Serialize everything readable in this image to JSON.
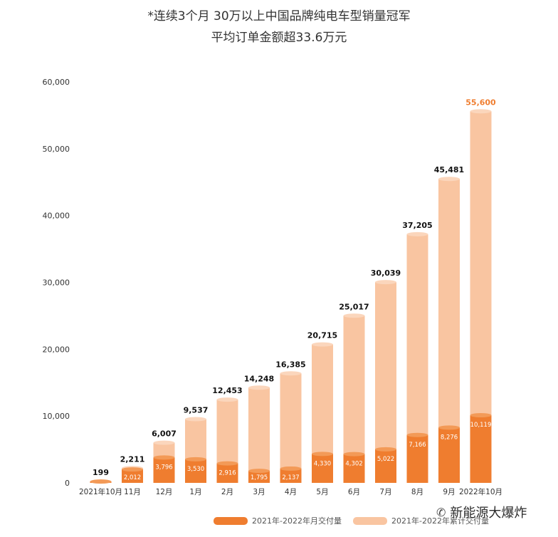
{
  "header": {
    "line1": "*连续3个月 30万以上中国品牌纯电车型销量冠军",
    "line2": "平均订单金额超33.6万元"
  },
  "legend": {
    "monthly": "2021年-2022年月交付量",
    "cumulative": "2021年-2022年累计交付量"
  },
  "watermark": {
    "icon": "wechat-icon",
    "text": "新能源大爆炸"
  },
  "chart_data": {
    "type": "bar",
    "categories": [
      "2021年10月",
      "11月",
      "12月",
      "1月",
      "2月",
      "3月",
      "4月",
      "5月",
      "6月",
      "7月",
      "8月",
      "9月",
      "2022年10月"
    ],
    "series": [
      {
        "name": "2021年-2022年累计交付量",
        "values": [
          199,
          2211,
          6007,
          9537,
          12453,
          14248,
          16385,
          20715,
          25017,
          30039,
          37205,
          45481,
          55600
        ],
        "labels": [
          "199",
          "2,211",
          "6,007",
          "9,537",
          "12,453",
          "14,248",
          "16,385",
          "20,715",
          "25,017",
          "30,039",
          "37,205",
          "45,481",
          "55,600"
        ]
      },
      {
        "name": "2021年-2022年月交付量",
        "values": [
          199,
          2012,
          3796,
          3530,
          2916,
          1795,
          2137,
          4330,
          4302,
          5022,
          7166,
          8276,
          10119
        ],
        "labels": [
          "",
          "2,012",
          "3,796",
          "3,530",
          "2,916",
          "1,795",
          "2,137",
          "4,330",
          "4,302",
          "5,022",
          "7,166",
          "8,276",
          "10,119"
        ]
      }
    ],
    "yticks": [
      0,
      10000,
      20000,
      30000,
      40000,
      50000,
      60000
    ],
    "ytick_labels": [
      "0",
      "10,000",
      "20,000",
      "30,000",
      "40,000",
      "50,000",
      "60,000"
    ],
    "ylim": [
      0,
      60000
    ],
    "grid": false,
    "legend_position": "bottom",
    "colors": {
      "monthly": "#ef7d2f",
      "monthly_top": "#f39a57",
      "cumulative": "#f9c5a1",
      "cumulative_top": "#fbd6bc",
      "highlight_label": "#ef7d2f",
      "label": "#111111"
    }
  }
}
